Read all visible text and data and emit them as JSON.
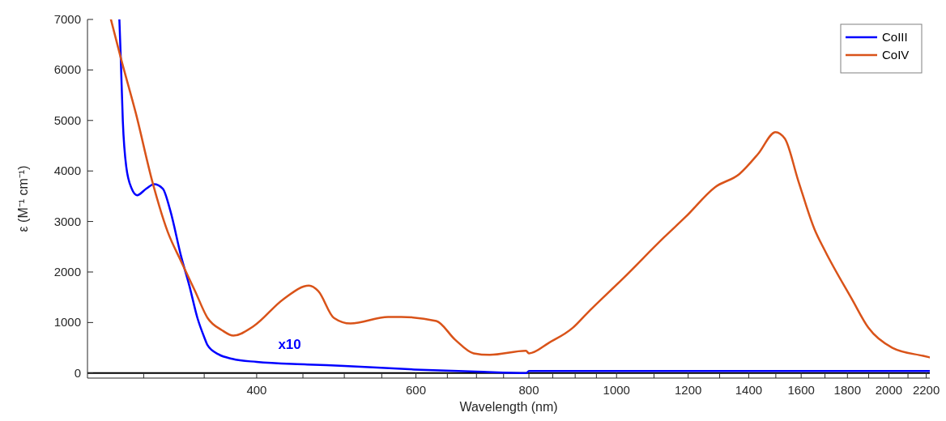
{
  "chart_data": {
    "type": "line",
    "xlabel": "Wavelength (nm)",
    "ylabel": "ε (M⁻¹ cm⁻¹)",
    "log": "x",
    "xlim": [
      260,
      2220
    ],
    "ylim": [
      -100,
      7000
    ],
    "xticks": [
      {
        "value": 300,
        "label": null
      },
      {
        "value": 350,
        "label": null
      },
      400,
      {
        "value": 450,
        "label": null
      },
      {
        "value": 500,
        "label": null
      },
      {
        "value": 550,
        "label": null
      },
      600,
      {
        "value": 650,
        "label": null
      },
      {
        "value": 700,
        "label": null
      },
      {
        "value": 750,
        "label": null
      },
      800,
      {
        "value": 850,
        "label": null
      },
      {
        "value": 900,
        "label": null
      },
      {
        "value": 950,
        "label": null
      },
      1000,
      {
        "value": 1100,
        "label": null
      },
      1200,
      {
        "value": 1300,
        "label": null
      },
      1400,
      {
        "value": 1500,
        "label": null
      },
      1600,
      {
        "value": 1700,
        "label": null
      },
      1800,
      {
        "value": 1900,
        "label": null
      },
      2000,
      {
        "value": 2100,
        "label": null
      },
      2200
    ],
    "yticks": [
      0,
      1000,
      2000,
      3000,
      4000,
      5000,
      6000,
      7000
    ],
    "ref_lines": [
      {
        "axis": "y",
        "value": 0,
        "color": "#000000"
      }
    ],
    "legend": "top right",
    "grid": false,
    "marker": "none",
    "line_style": "solid",
    "annotations": [
      "x10"
    ],
    "series": [
      {
        "name": "CoIII",
        "color": "#0000ff",
        "x": [
          282,
          283,
          284.5,
          287,
          291,
          295,
          302,
          308,
          315,
          321,
          330,
          337,
          344,
          350,
          353,
          363,
          376,
          400,
          455,
          500,
          598,
          700,
          795,
          800,
          2220
        ],
        "values": [
          7000,
          6240,
          4980,
          4080,
          3650,
          3520,
          3650,
          3740,
          3650,
          3220,
          2310,
          1730,
          1090,
          710,
          550,
          370,
          280,
          220,
          170,
          140,
          70,
          30,
          0,
          40,
          40
        ]
      },
      {
        "name": "CoIV",
        "color": "#d95319",
        "x": [
          276,
          283,
          294,
          307,
          319,
          330,
          342,
          353,
          366,
          377,
          397,
          428,
          457,
          468,
          487,
          508,
          559,
          578,
          632,
          663,
          695,
          724,
          794,
          800,
          842,
          895,
          926,
          1019,
          1129,
          1192,
          1285,
          1367,
          1434,
          1499,
          1535,
          1588,
          1655,
          1700,
          1821,
          1898,
          2018,
          2183,
          2220
        ],
        "values": [
          7000,
          6240,
          5150,
          3760,
          2790,
          2210,
          1620,
          1090,
          850,
          740,
          930,
          1460,
          1730,
          1620,
          1090,
          980,
          1110,
          1110,
          1030,
          660,
          390,
          360,
          440,
          390,
          600,
          900,
          1170,
          1890,
          2690,
          3090,
          3680,
          3940,
          4340,
          4770,
          4640,
          3810,
          2850,
          2420,
          1460,
          900,
          500,
          340,
          310
        ]
      }
    ]
  }
}
